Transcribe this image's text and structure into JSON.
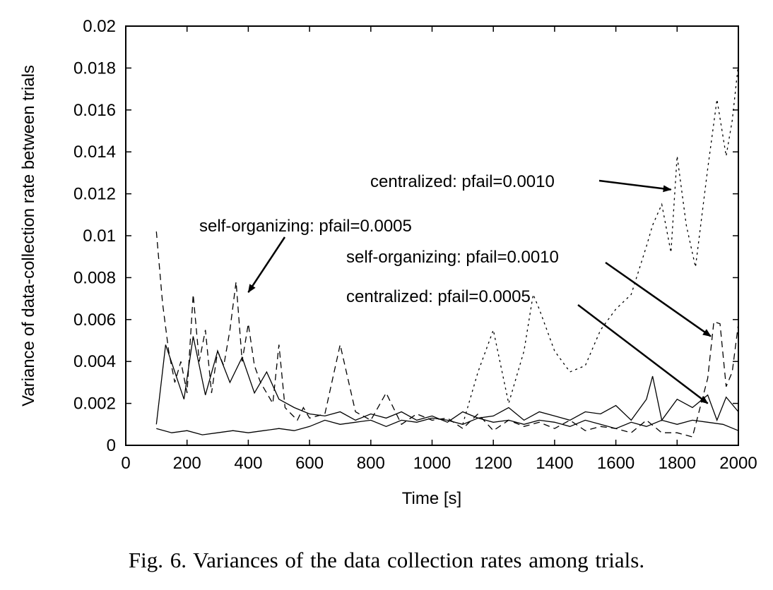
{
  "chart_data": {
    "type": "line",
    "xlabel": "Time [s]",
    "ylabel": "Variance of data-collection rate between trials",
    "xlim": [
      0,
      2000
    ],
    "ylim": [
      0,
      0.02
    ],
    "xticks": [
      "0",
      "200",
      "400",
      "600",
      "800",
      "1000",
      "1200",
      "1400",
      "1600",
      "1800",
      "2000"
    ],
    "yticks": [
      "0",
      "0.002",
      "0.004",
      "0.006",
      "0.008",
      "0.01",
      "0.012",
      "0.014",
      "0.016",
      "0.018",
      "0.02"
    ],
    "grid": false,
    "legend": "none",
    "annotations": [
      {
        "text": "centralized: pfail=0.0010",
        "target": [
          1780,
          0.0122
        ]
      },
      {
        "text": "self-organizing: pfail=0.0005",
        "target": [
          400,
          0.0073
        ]
      },
      {
        "text": "self-organizing: pfail=0.0010",
        "target": [
          1910,
          0.0052
        ]
      },
      {
        "text": "centralized: pfail=0.0005",
        "target": [
          1900,
          0.002
        ]
      }
    ],
    "series": [
      {
        "style": "dashed",
        "x": [
          100,
          120,
          140,
          160,
          180,
          200,
          220,
          240,
          260,
          280,
          300,
          320,
          340,
          360,
          380,
          400,
          420,
          440,
          460,
          480,
          500,
          520,
          540,
          560,
          580,
          600,
          650,
          700,
          750,
          800,
          850,
          900,
          950,
          1000,
          1050,
          1100,
          1150,
          1200,
          1250,
          1300,
          1350,
          1400,
          1450,
          1500,
          1550,
          1600,
          1650,
          1700,
          1750,
          1800,
          1850,
          1900,
          1920,
          1940,
          1960,
          1980,
          2000
        ],
        "y": [
          0.0102,
          0.0068,
          0.0045,
          0.003,
          0.004,
          0.0025,
          0.0072,
          0.004,
          0.0055,
          0.0025,
          0.0045,
          0.0038,
          0.0055,
          0.0078,
          0.004,
          0.0058,
          0.0038,
          0.003,
          0.0025,
          0.002,
          0.0048,
          0.0018,
          0.0015,
          0.0012,
          0.0018,
          0.0013,
          0.0015,
          0.0048,
          0.0016,
          0.0012,
          0.0025,
          0.001,
          0.0015,
          0.0012,
          0.0013,
          0.0008,
          0.0015,
          0.0007,
          0.0012,
          0.0009,
          0.0011,
          0.0008,
          0.0012,
          0.0007,
          0.0009,
          0.0008,
          0.0006,
          0.0012,
          0.0006,
          0.0006,
          0.0004,
          0.0032,
          0.0059,
          0.0058,
          0.0028,
          0.0035,
          0.0058
        ]
      },
      {
        "style": "dotted",
        "x": [
          1100,
          1150,
          1200,
          1250,
          1300,
          1330,
          1350,
          1400,
          1450,
          1500,
          1550,
          1600,
          1650,
          1700,
          1720,
          1750,
          1780,
          1800,
          1830,
          1860,
          1900,
          1930,
          1960,
          1980,
          2000
        ],
        "y": [
          0.001,
          0.0035,
          0.0055,
          0.002,
          0.0045,
          0.0072,
          0.0065,
          0.0045,
          0.0035,
          0.0038,
          0.0055,
          0.0065,
          0.0072,
          0.0095,
          0.0105,
          0.0115,
          0.0092,
          0.0138,
          0.0105,
          0.0085,
          0.0132,
          0.0165,
          0.0138,
          0.0155,
          0.0182
        ]
      },
      {
        "style": "solid",
        "x": [
          100,
          150,
          200,
          250,
          300,
          350,
          400,
          450,
          500,
          550,
          600,
          650,
          700,
          750,
          800,
          850,
          900,
          950,
          1000,
          1050,
          1100,
          1150,
          1200,
          1250,
          1300,
          1350,
          1400,
          1450,
          1500,
          1550,
          1600,
          1650,
          1700,
          1750,
          1800,
          1850,
          1900,
          1950,
          2000
        ],
        "y": [
          0.0008,
          0.0006,
          0.0007,
          0.0005,
          0.0006,
          0.0007,
          0.0006,
          0.0007,
          0.0008,
          0.0007,
          0.0009,
          0.0012,
          0.001,
          0.0011,
          0.0012,
          0.0009,
          0.0012,
          0.0011,
          0.0013,
          0.0012,
          0.001,
          0.0013,
          0.0011,
          0.0012,
          0.001,
          0.0012,
          0.0011,
          0.0009,
          0.0012,
          0.001,
          0.0008,
          0.0011,
          0.0009,
          0.0012,
          0.001,
          0.0012,
          0.0011,
          0.001,
          0.0007
        ]
      },
      {
        "style": "solid",
        "x": [
          100,
          130,
          160,
          190,
          220,
          260,
          300,
          340,
          380,
          420,
          460,
          500,
          550,
          600,
          650,
          700,
          750,
          800,
          850,
          900,
          950,
          1000,
          1050,
          1100,
          1150,
          1200,
          1250,
          1300,
          1350,
          1400,
          1450,
          1500,
          1550,
          1600,
          1650,
          1700,
          1720,
          1750,
          1800,
          1850,
          1900,
          1930,
          1960,
          2000
        ],
        "y": [
          0.001,
          0.0048,
          0.0035,
          0.0022,
          0.0052,
          0.0024,
          0.0045,
          0.003,
          0.0042,
          0.0025,
          0.0035,
          0.0022,
          0.0018,
          0.0015,
          0.0014,
          0.0016,
          0.0012,
          0.0015,
          0.0013,
          0.0016,
          0.0012,
          0.0014,
          0.0011,
          0.0016,
          0.0013,
          0.0014,
          0.0018,
          0.0012,
          0.0016,
          0.0014,
          0.0012,
          0.0016,
          0.0015,
          0.0019,
          0.0012,
          0.0022,
          0.0033,
          0.0012,
          0.0022,
          0.0018,
          0.0024,
          0.0012,
          0.0023,
          0.0016
        ]
      }
    ]
  },
  "caption": "Fig. 6.   Variances of the data collection rates among trials."
}
